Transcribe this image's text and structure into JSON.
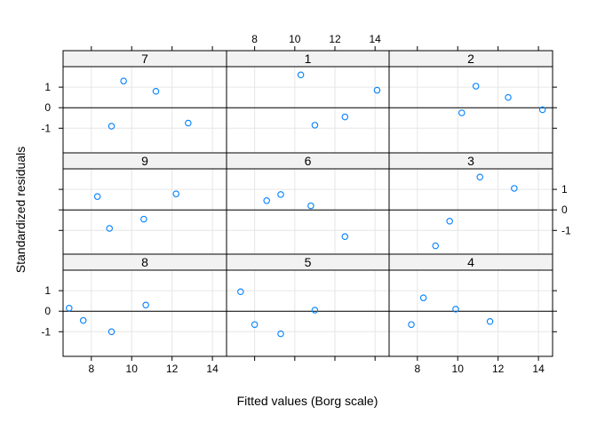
{
  "chart_data": {
    "type": "scatter",
    "xlabel": "Fitted values (Borg scale)",
    "ylabel": "Standardized residuals",
    "xlim": [
      6.6,
      14.7
    ],
    "ylim": [
      -2.2,
      2.0
    ],
    "x_ticks": [
      8,
      10,
      12,
      14
    ],
    "y_ticks": [
      -1,
      0,
      1
    ],
    "reference_line_y": 0,
    "grid": true,
    "point_color": "#0080ff",
    "strip_color": "#f2f2f2",
    "panels": [
      {
        "label": "7",
        "row": 0,
        "col": 0,
        "points": [
          {
            "x": 9.6,
            "y": 1.3
          },
          {
            "x": 11.2,
            "y": 0.8
          },
          {
            "x": 9.0,
            "y": -0.9
          },
          {
            "x": 12.8,
            "y": -0.75
          }
        ]
      },
      {
        "label": "1",
        "row": 0,
        "col": 1,
        "points": [
          {
            "x": 10.3,
            "y": 1.6
          },
          {
            "x": 14.1,
            "y": 0.85
          },
          {
            "x": 12.5,
            "y": -0.45
          },
          {
            "x": 11.0,
            "y": -0.85
          }
        ]
      },
      {
        "label": "2",
        "row": 0,
        "col": 2,
        "points": [
          {
            "x": 10.9,
            "y": 1.05
          },
          {
            "x": 12.5,
            "y": 0.5
          },
          {
            "x": 14.2,
            "y": -0.1
          },
          {
            "x": 10.2,
            "y": -0.25
          }
        ]
      },
      {
        "label": "9",
        "row": 1,
        "col": 0,
        "points": [
          {
            "x": 8.3,
            "y": 0.65
          },
          {
            "x": 12.2,
            "y": 0.78
          },
          {
            "x": 10.6,
            "y": -0.45
          },
          {
            "x": 8.9,
            "y": -0.9
          }
        ]
      },
      {
        "label": "6",
        "row": 1,
        "col": 1,
        "points": [
          {
            "x": 8.6,
            "y": 0.45
          },
          {
            "x": 9.3,
            "y": 0.75
          },
          {
            "x": 10.8,
            "y": 0.2
          },
          {
            "x": 12.5,
            "y": -1.3
          }
        ]
      },
      {
        "label": "3",
        "row": 1,
        "col": 2,
        "points": [
          {
            "x": 11.1,
            "y": 1.6
          },
          {
            "x": 12.8,
            "y": 1.05
          },
          {
            "x": 9.6,
            "y": -0.55
          },
          {
            "x": 8.9,
            "y": -1.75
          }
        ]
      },
      {
        "label": "8",
        "row": 2,
        "col": 0,
        "points": [
          {
            "x": 6.9,
            "y": 0.15
          },
          {
            "x": 7.6,
            "y": -0.45
          },
          {
            "x": 9.0,
            "y": -1.0
          },
          {
            "x": 10.7,
            "y": 0.3
          }
        ]
      },
      {
        "label": "5",
        "row": 2,
        "col": 1,
        "points": [
          {
            "x": 7.3,
            "y": 0.95
          },
          {
            "x": 8.0,
            "y": -0.65
          },
          {
            "x": 9.3,
            "y": -1.1
          },
          {
            "x": 11.0,
            "y": 0.05
          }
        ]
      },
      {
        "label": "4",
        "row": 2,
        "col": 2,
        "points": [
          {
            "x": 8.3,
            "y": 0.65
          },
          {
            "x": 9.9,
            "y": 0.1
          },
          {
            "x": 7.7,
            "y": -0.65
          },
          {
            "x": 11.6,
            "y": -0.5
          }
        ]
      }
    ]
  }
}
